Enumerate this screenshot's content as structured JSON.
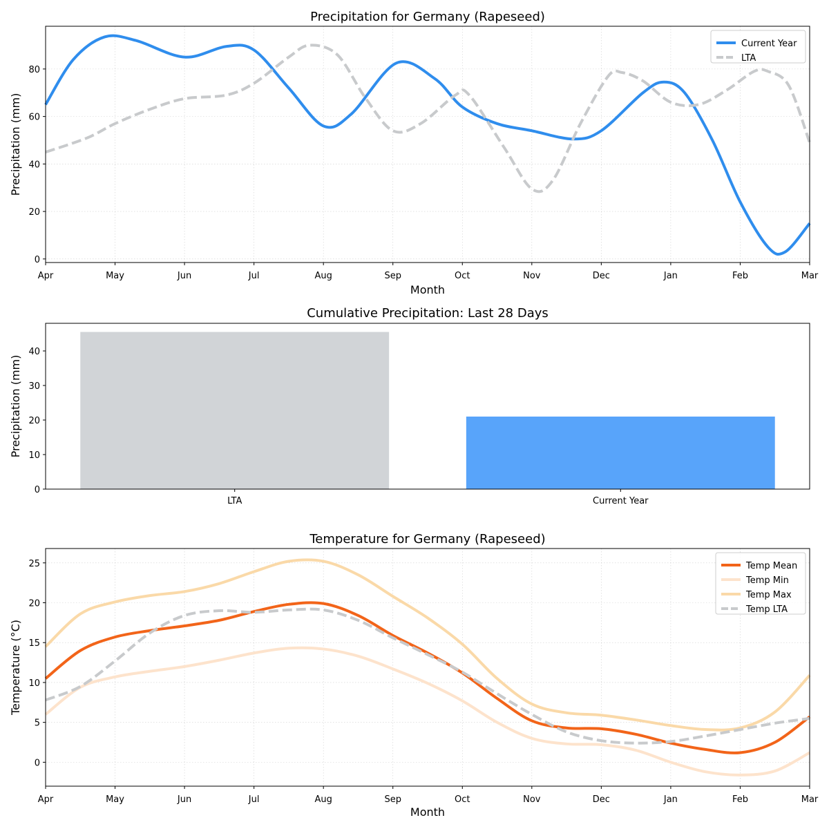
{
  "chart_data": [
    {
      "type": "line",
      "title": "Precipitation for Germany (Rapeseed)",
      "xlabel": "Month",
      "ylabel": "Precipitation (mm)",
      "categories": [
        "Apr",
        "May",
        "Jun",
        "Jul",
        "Aug",
        "Sep",
        "Oct",
        "Nov",
        "Dec",
        "Jan",
        "Feb",
        "Mar"
      ],
      "xlim": [
        0,
        11
      ],
      "ylim": [
        -1.5,
        98
      ],
      "yticks": [
        0,
        20,
        40,
        60,
        80
      ],
      "grid": true,
      "legend_position": "upper right",
      "series": [
        {
          "name": "Current Year",
          "color": "#2f8ded",
          "style": "solid",
          "points": [
            [
              0,
              65
            ],
            [
              0.4,
              84
            ],
            [
              0.85,
              93.5
            ],
            [
              1.3,
              92
            ],
            [
              2,
              85
            ],
            [
              2.6,
              89.5
            ],
            [
              3,
              88
            ],
            [
              3.5,
              72
            ],
            [
              4,
              56
            ],
            [
              4.4,
              61
            ],
            [
              5.05,
              82.5
            ],
            [
              5.6,
              76
            ],
            [
              6,
              64
            ],
            [
              6.5,
              57
            ],
            [
              7,
              54
            ],
            [
              7.6,
              50.5
            ],
            [
              8,
              54
            ],
            [
              8.6,
              70
            ],
            [
              8.9,
              74.5
            ],
            [
              9.2,
              70
            ],
            [
              9.6,
              50
            ],
            [
              10,
              24
            ],
            [
              10.4,
              5
            ],
            [
              10.65,
              3
            ],
            [
              11,
              15
            ]
          ]
        },
        {
          "name": "LTA",
          "color": "#c8cacc",
          "style": "dashed",
          "points": [
            [
              0,
              45
            ],
            [
              0.6,
              51
            ],
            [
              1,
              57
            ],
            [
              1.5,
              63
            ],
            [
              2,
              67.5
            ],
            [
              2.6,
              69
            ],
            [
              3,
              74
            ],
            [
              3.5,
              85
            ],
            [
              3.8,
              90
            ],
            [
              4.2,
              86
            ],
            [
              4.6,
              68
            ],
            [
              5,
              54
            ],
            [
              5.4,
              57
            ],
            [
              5.9,
              69
            ],
            [
              6.1,
              69
            ],
            [
              6.6,
              47
            ],
            [
              7,
              29.5
            ],
            [
              7.3,
              33
            ],
            [
              7.7,
              57
            ],
            [
              8.1,
              77
            ],
            [
              8.3,
              78.5
            ],
            [
              8.6,
              75
            ],
            [
              9,
              66
            ],
            [
              9.4,
              65
            ],
            [
              9.8,
              71
            ],
            [
              10.2,
              79
            ],
            [
              10.4,
              79
            ],
            [
              10.7,
              73
            ],
            [
              11,
              49
            ]
          ]
        }
      ]
    },
    {
      "type": "bar",
      "title": "Cumulative Precipitation: Last 28 Days",
      "xlabel": "",
      "ylabel": "Precipitation (mm)",
      "categories": [
        "LTA",
        "Current Year"
      ],
      "values": [
        45.5,
        21
      ],
      "colors": [
        "#d1d4d7",
        "#58a4fa"
      ],
      "ylim": [
        0,
        48
      ],
      "yticks": [
        0,
        10,
        20,
        30,
        40
      ]
    },
    {
      "type": "line",
      "title": "Temperature for Germany (Rapeseed)",
      "xlabel": "Month",
      "ylabel": "Temperature (°C)",
      "categories": [
        "Apr",
        "May",
        "Jun",
        "Jul",
        "Aug",
        "Sep",
        "Oct",
        "Nov",
        "Dec",
        "Jan",
        "Feb",
        "Mar"
      ],
      "xlim": [
        0,
        11
      ],
      "ylim": [
        -3,
        26.8
      ],
      "yticks": [
        0,
        5,
        10,
        15,
        20,
        25
      ],
      "grid": true,
      "legend_position": "upper right",
      "series": [
        {
          "name": "Temp Mean",
          "color": "#f26419",
          "style": "solid",
          "points": [
            [
              0,
              10.5
            ],
            [
              0.5,
              14
            ],
            [
              1,
              15.7
            ],
            [
              1.5,
              16.5
            ],
            [
              2,
              17.1
            ],
            [
              2.5,
              17.8
            ],
            [
              3,
              18.9
            ],
            [
              3.5,
              19.8
            ],
            [
              4,
              19.9
            ],
            [
              4.5,
              18.4
            ],
            [
              5,
              15.9
            ],
            [
              5.5,
              13.7
            ],
            [
              6,
              11.2
            ],
            [
              6.5,
              8
            ],
            [
              7,
              5.2
            ],
            [
              7.5,
              4.3
            ],
            [
              8,
              4.2
            ],
            [
              8.5,
              3.5
            ],
            [
              9,
              2.4
            ],
            [
              9.5,
              1.6
            ],
            [
              10,
              1.2
            ],
            [
              10.5,
              2.5
            ],
            [
              11,
              5.7
            ]
          ]
        },
        {
          "name": "Temp Min",
          "color": "#fde3cc",
          "style": "solid",
          "points": [
            [
              0,
              6
            ],
            [
              0.5,
              9.4
            ],
            [
              1,
              10.7
            ],
            [
              1.5,
              11.4
            ],
            [
              2,
              12
            ],
            [
              2.5,
              12.8
            ],
            [
              3,
              13.7
            ],
            [
              3.5,
              14.3
            ],
            [
              4,
              14.2
            ],
            [
              4.5,
              13.3
            ],
            [
              5,
              11.7
            ],
            [
              5.5,
              9.9
            ],
            [
              6,
              7.7
            ],
            [
              6.5,
              5
            ],
            [
              7,
              3
            ],
            [
              7.5,
              2.3
            ],
            [
              8,
              2.2
            ],
            [
              8.5,
              1.5
            ],
            [
              9,
              0
            ],
            [
              9.5,
              -1.2
            ],
            [
              10,
              -1.6
            ],
            [
              10.5,
              -1.1
            ],
            [
              11,
              1.2
            ]
          ]
        },
        {
          "name": "Temp Max",
          "color": "#fad9a8",
          "style": "solid",
          "points": [
            [
              0,
              14.5
            ],
            [
              0.5,
              18.6
            ],
            [
              1,
              20.1
            ],
            [
              1.5,
              20.9
            ],
            [
              2,
              21.4
            ],
            [
              2.5,
              22.4
            ],
            [
              3,
              23.9
            ],
            [
              3.5,
              25.2
            ],
            [
              4,
              25.2
            ],
            [
              4.5,
              23.5
            ],
            [
              5,
              20.8
            ],
            [
              5.5,
              18.1
            ],
            [
              6,
              14.8
            ],
            [
              6.5,
              10.5
            ],
            [
              7,
              7.3
            ],
            [
              7.5,
              6.2
            ],
            [
              8,
              5.9
            ],
            [
              8.5,
              5.3
            ],
            [
              9,
              4.6
            ],
            [
              9.5,
              4.1
            ],
            [
              10,
              4.3
            ],
            [
              10.5,
              6.3
            ],
            [
              11,
              10.9
            ]
          ]
        },
        {
          "name": "Temp LTA",
          "color": "#c8cacc",
          "style": "dashed",
          "points": [
            [
              0,
              7.8
            ],
            [
              0.5,
              9.5
            ],
            [
              1,
              12.7
            ],
            [
              1.5,
              16.2
            ],
            [
              2,
              18.4
            ],
            [
              2.5,
              19
            ],
            [
              3,
              18.8
            ],
            [
              3.5,
              19.1
            ],
            [
              4,
              19.1
            ],
            [
              4.5,
              17.8
            ],
            [
              5,
              15.6
            ],
            [
              5.5,
              13.5
            ],
            [
              6,
              11.3
            ],
            [
              6.5,
              8.6
            ],
            [
              7,
              6
            ],
            [
              7.5,
              3.8
            ],
            [
              8,
              2.7
            ],
            [
              8.5,
              2.4
            ],
            [
              9,
              2.6
            ],
            [
              9.5,
              3.3
            ],
            [
              10,
              4.1
            ],
            [
              10.5,
              4.9
            ],
            [
              11,
              5.5
            ]
          ]
        }
      ]
    }
  ]
}
